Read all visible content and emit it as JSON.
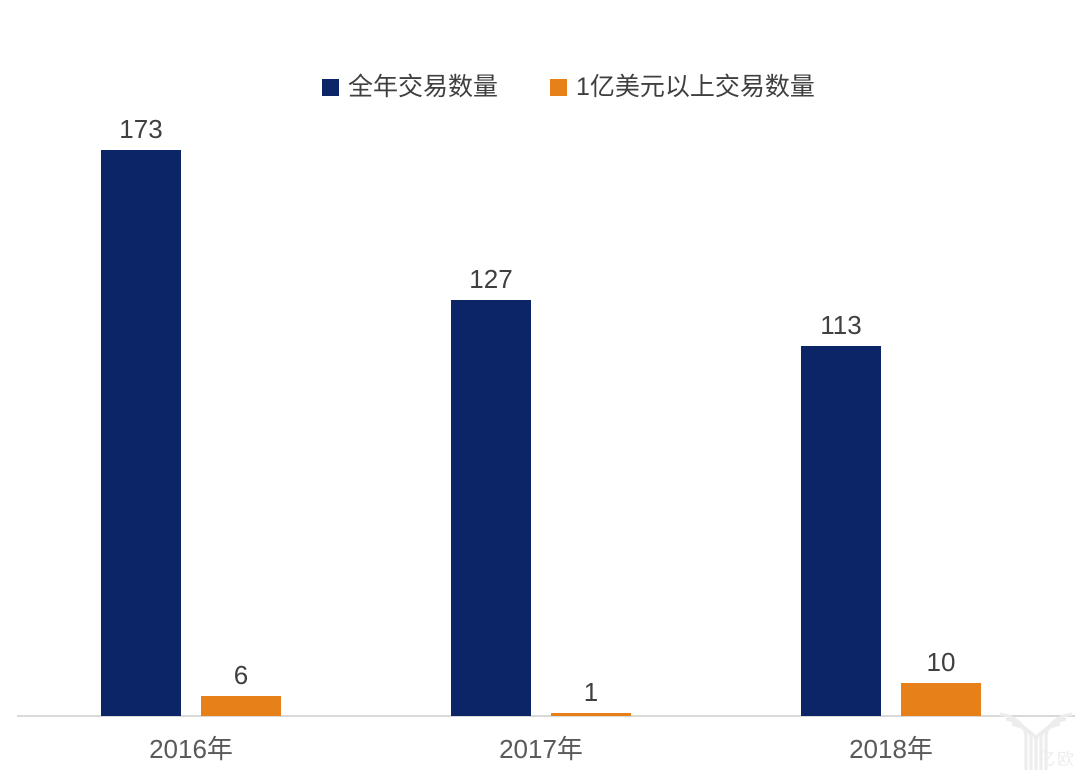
{
  "chart_data": {
    "type": "bar",
    "title": "",
    "xlabel": "",
    "ylabel": "",
    "categories": [
      "2016年",
      "2017年",
      "2018年"
    ],
    "series": [
      {
        "name": "全年交易数量",
        "color": "#0b2566",
        "values": [
          173,
          127,
          113
        ]
      },
      {
        "name": "1亿美元以上交易数量",
        "color": "#e8801a",
        "values": [
          6,
          1,
          10
        ]
      }
    ],
    "value_labels_shown": true,
    "ylim": [
      0,
      180
    ],
    "grid": false,
    "legend_position": "top-center",
    "axis": {
      "x_axis_line": true,
      "y_axis_shown": false
    }
  },
  "colors": {
    "background": "#ffffff",
    "axis_line": "#d9d9d9",
    "tick_label": "#595959",
    "value_label": "#404040",
    "legend_label": "#3f3f3f",
    "watermark": "#ededed"
  },
  "watermark": {
    "logo_icon": "eo-y-logo-icon",
    "text": "亿欧"
  }
}
